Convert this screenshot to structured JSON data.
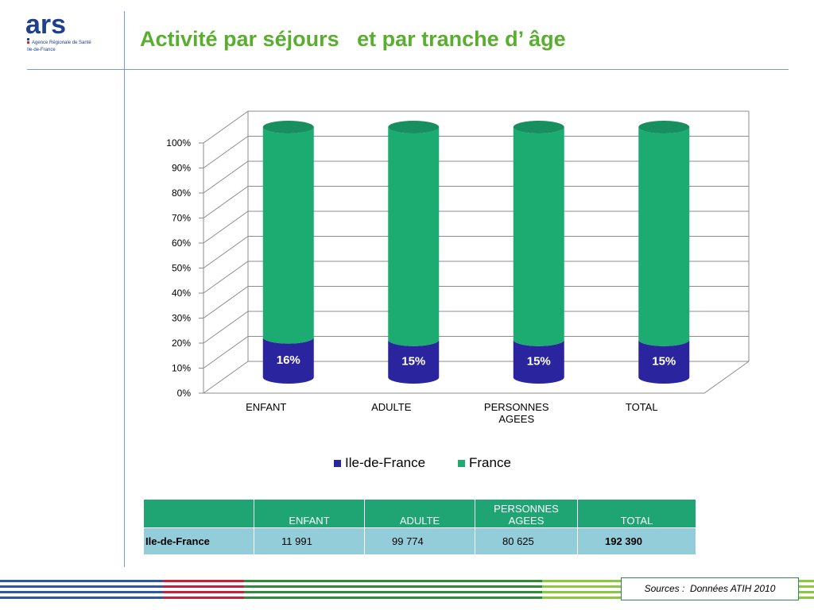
{
  "header": {
    "title": "Activité par séjours   et par tranche d’ âge",
    "logo": {
      "main": "ars",
      "line1": "Agence Régionale de Santé",
      "line2": "Ile-de-France"
    }
  },
  "colors": {
    "idf": "#2a249e",
    "france": "#1cac72",
    "title": "#5aae2f",
    "table_head": "#1fa574",
    "table_row": "#93cdda"
  },
  "chart_data": {
    "type": "bar",
    "stacked": true,
    "percent": true,
    "categories": [
      "ENFANT",
      "ADULTE",
      "PERSONNES AGEES",
      "TOTAL"
    ],
    "series": [
      {
        "name": "Ile-de-France",
        "values": [
          16,
          15,
          15,
          15
        ],
        "labels": [
          "16%",
          "15%",
          "15%",
          "15%"
        ]
      },
      {
        "name": "France",
        "values": [
          84,
          85,
          85,
          85
        ]
      }
    ],
    "ylim": [
      0,
      100
    ],
    "yticks": [
      "0%",
      "10%",
      "20%",
      "30%",
      "40%",
      "50%",
      "60%",
      "70%",
      "80%",
      "90%",
      "100%"
    ],
    "grid": true,
    "legend": "bottom"
  },
  "table": {
    "headers": [
      "",
      "ENFANT",
      "ADULTE",
      "PERSONNES AGEES",
      "TOTAL"
    ],
    "row": {
      "label": "Ile-de-France",
      "values": [
        "11 991",
        "99 774",
        "80 625",
        "192 390"
      ]
    }
  },
  "footer": {
    "source": "Sources :  Données ATIH 2010"
  }
}
